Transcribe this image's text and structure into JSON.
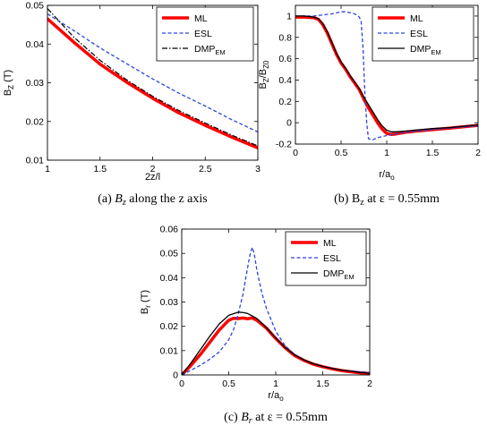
{
  "chart_data": [
    {
      "type": "line",
      "caption": "(a) Bz along the z axis",
      "caption_parts": {
        "prefix": "(a) ",
        "sym": "B",
        "sub": "z",
        "suffix": " along the z axis"
      },
      "xlabel": "2z/l",
      "ylabel": "B",
      "ylabel_sub": "Z",
      "ylabel_unit": " (T)",
      "xlim": [
        1,
        3
      ],
      "ylim": [
        0.01,
        0.05
      ],
      "xticks": [
        1,
        1.5,
        2,
        2.5,
        3
      ],
      "xtick_labels": [
        "1",
        "1.5",
        "2",
        "2.5",
        "3"
      ],
      "yticks": [
        0.01,
        0.02,
        0.03,
        0.04,
        0.05
      ],
      "ytick_labels": [
        "0.01",
        "0.02",
        "0.03",
        "0.04",
        "0.05"
      ],
      "legend": "top-right",
      "grid": false,
      "series": [
        {
          "name": "ML",
          "label_main": "ML",
          "label_sub": "",
          "color": "#ff0000",
          "style": "solid",
          "width": 3.5,
          "x": [
            1,
            1.25,
            1.5,
            1.75,
            2,
            2.25,
            2.5,
            2.75,
            3
          ],
          "y": [
            0.0465,
            0.0405,
            0.0348,
            0.0302,
            0.026,
            0.0222,
            0.019,
            0.016,
            0.0132
          ]
        },
        {
          "name": "ESL",
          "label_main": "ESL",
          "label_sub": "",
          "color": "#2a44e0",
          "style": "dashed",
          "width": 1.3,
          "x": [
            1,
            1.25,
            1.5,
            1.75,
            2,
            2.25,
            2.5,
            2.75,
            3
          ],
          "y": [
            0.0478,
            0.0435,
            0.039,
            0.035,
            0.031,
            0.0273,
            0.024,
            0.0205,
            0.0173
          ]
        },
        {
          "name": "DMPEM",
          "label_main": "DMP",
          "label_sub": "EM",
          "color": "#000000",
          "style": "dashdot",
          "width": 1.2,
          "x": [
            1,
            1.25,
            1.5,
            1.75,
            2,
            2.25,
            2.5,
            2.75,
            3
          ],
          "y": [
            0.0492,
            0.0418,
            0.0358,
            0.0308,
            0.0265,
            0.0228,
            0.0196,
            0.0165,
            0.0137
          ]
        }
      ]
    },
    {
      "type": "line",
      "caption": "(b) Bz at ε = 0.55mm",
      "caption_parts": {
        "prefix": "(b) B",
        "sym": "",
        "sub": "z",
        "suffix": "  at ε = 0.55mm"
      },
      "xlabel": "r/a",
      "xlabel_sub": "o",
      "ylabel": "B",
      "ylabel_sub": "Z",
      "ylabel_mid": "/B",
      "ylabel_sub2": "Z0",
      "xlim": [
        0,
        2
      ],
      "ylim": [
        -0.2,
        1.1
      ],
      "xticks": [
        0,
        0.5,
        1,
        1.5,
        2
      ],
      "xtick_labels": [
        "0",
        "0.5",
        "1",
        "1.5",
        "2"
      ],
      "yticks": [
        -0.2,
        0,
        0.2,
        0.4,
        0.6,
        0.8,
        1
      ],
      "ytick_labels": [
        "-0.2",
        "0",
        "0.2",
        "0.4",
        "0.6",
        "0.8",
        "1"
      ],
      "legend": "top-right",
      "grid": false,
      "series": [
        {
          "name": "ML",
          "label_main": "ML",
          "label_sub": "",
          "color": "#ff0000",
          "style": "solid",
          "width": 3.5,
          "x": [
            0,
            0.1,
            0.2,
            0.25,
            0.3,
            0.35,
            0.4,
            0.45,
            0.5,
            0.55,
            0.6,
            0.65,
            0.7,
            0.75,
            0.8,
            0.85,
            0.9,
            0.95,
            1.0,
            1.05,
            1.1,
            1.2,
            1.3,
            1.5,
            1.7,
            2.0
          ],
          "y": [
            0.99,
            0.99,
            0.985,
            0.97,
            0.92,
            0.84,
            0.74,
            0.64,
            0.56,
            0.5,
            0.43,
            0.37,
            0.31,
            0.22,
            0.14,
            0.07,
            0.0,
            -0.06,
            -0.1,
            -0.11,
            -0.105,
            -0.09,
            -0.08,
            -0.065,
            -0.05,
            -0.025
          ]
        },
        {
          "name": "ESL",
          "label_main": "ESL",
          "label_sub": "",
          "color": "#2a44e0",
          "style": "dashed",
          "width": 1.3,
          "x": [
            0,
            0.1,
            0.2,
            0.3,
            0.4,
            0.5,
            0.55,
            0.6,
            0.65,
            0.7,
            0.72,
            0.74,
            0.76,
            0.78,
            0.8,
            0.85,
            0.9,
            1.0,
            1.2,
            1.5,
            1.7,
            2.0
          ],
          "y": [
            1.0,
            1.0,
            1.0,
            1.01,
            1.02,
            1.04,
            1.04,
            1.03,
            1.02,
            0.99,
            0.95,
            0.7,
            0.3,
            0.0,
            -0.15,
            -0.16,
            -0.14,
            -0.12,
            -0.09,
            -0.065,
            -0.05,
            -0.03
          ]
        },
        {
          "name": "DMPEM",
          "label_main": "DMP",
          "label_sub": "EM",
          "color": "#000000",
          "style": "solid",
          "width": 1.3,
          "x": [
            0,
            0.1,
            0.2,
            0.25,
            0.3,
            0.35,
            0.4,
            0.45,
            0.5,
            0.55,
            0.6,
            0.65,
            0.7,
            0.75,
            0.8,
            0.85,
            0.9,
            0.95,
            1.0,
            1.05,
            1.1,
            1.2,
            1.3,
            1.5,
            1.7,
            2.0
          ],
          "y": [
            1.0,
            1.0,
            0.99,
            0.975,
            0.93,
            0.85,
            0.75,
            0.65,
            0.57,
            0.51,
            0.44,
            0.38,
            0.32,
            0.24,
            0.17,
            0.1,
            0.03,
            -0.03,
            -0.07,
            -0.085,
            -0.085,
            -0.078,
            -0.07,
            -0.055,
            -0.045,
            -0.02
          ]
        }
      ]
    },
    {
      "type": "line",
      "caption": "(c) Br at ε = 0.55mm",
      "caption_parts": {
        "prefix": "(c) ",
        "sym": "B",
        "sub": "r",
        "suffix": " at ε = 0.55mm"
      },
      "xlabel": "r/a",
      "xlabel_sub": "o",
      "ylabel": "B",
      "ylabel_sub": "r",
      "ylabel_unit": " (T)",
      "xlim": [
        0,
        2
      ],
      "ylim": [
        0,
        0.06
      ],
      "xticks": [
        0,
        0.5,
        1,
        1.5,
        2
      ],
      "xtick_labels": [
        "0",
        "0.5",
        "1",
        "1.5",
        "2"
      ],
      "yticks": [
        0,
        0.01,
        0.02,
        0.03,
        0.04,
        0.05,
        0.06
      ],
      "ytick_labels": [
        "0",
        "0.01",
        "0.02",
        "0.03",
        "0.04",
        "0.05",
        "0.06"
      ],
      "legend": "top-right",
      "grid": false,
      "series": [
        {
          "name": "ML",
          "label_main": "ML",
          "label_sub": "",
          "color": "#ff0000",
          "style": "solid",
          "width": 3.5,
          "x": [
            0,
            0.1,
            0.2,
            0.3,
            0.4,
            0.5,
            0.55,
            0.6,
            0.65,
            0.7,
            0.75,
            0.8,
            0.9,
            1.0,
            1.1,
            1.2,
            1.3,
            1.4,
            1.5,
            1.6,
            1.7,
            1.8,
            1.9,
            2.0
          ],
          "y": [
            0.0,
            0.004,
            0.0085,
            0.0135,
            0.0185,
            0.0225,
            0.0233,
            0.0232,
            0.0234,
            0.0231,
            0.0234,
            0.0225,
            0.0193,
            0.015,
            0.0112,
            0.008,
            0.006,
            0.0044,
            0.0034,
            0.0025,
            0.0018,
            0.0013,
            0.0009,
            0.0006
          ]
        },
        {
          "name": "ESL",
          "label_main": "ESL",
          "label_sub": "",
          "color": "#2a44e0",
          "style": "dashed",
          "width": 1.3,
          "x": [
            0,
            0.1,
            0.2,
            0.3,
            0.4,
            0.5,
            0.55,
            0.6,
            0.65,
            0.7,
            0.73,
            0.75,
            0.77,
            0.8,
            0.85,
            0.9,
            1.0,
            1.1,
            1.2,
            1.3,
            1.5,
            1.7,
            2.0
          ],
          "y": [
            0.0,
            0.002,
            0.004,
            0.0065,
            0.0095,
            0.0145,
            0.0185,
            0.025,
            0.033,
            0.044,
            0.05,
            0.0525,
            0.05,
            0.043,
            0.034,
            0.0275,
            0.018,
            0.012,
            0.0085,
            0.006,
            0.0035,
            0.002,
            0.001
          ]
        },
        {
          "name": "DMPEM",
          "label_main": "DMP",
          "label_sub": "EM",
          "color": "#000000",
          "style": "solid",
          "width": 1.3,
          "x": [
            0,
            0.1,
            0.2,
            0.3,
            0.4,
            0.5,
            0.6,
            0.65,
            0.7,
            0.8,
            0.9,
            1.0,
            1.1,
            1.2,
            1.3,
            1.4,
            1.5,
            1.6,
            1.7,
            1.8,
            1.9,
            2.0
          ],
          "y": [
            0.0,
            0.005,
            0.0105,
            0.016,
            0.021,
            0.0245,
            0.0258,
            0.0257,
            0.0253,
            0.0232,
            0.0195,
            0.0152,
            0.0113,
            0.0083,
            0.0062,
            0.0046,
            0.0035,
            0.0027,
            0.002,
            0.0015,
            0.001,
            0.0007
          ]
        }
      ]
    }
  ]
}
